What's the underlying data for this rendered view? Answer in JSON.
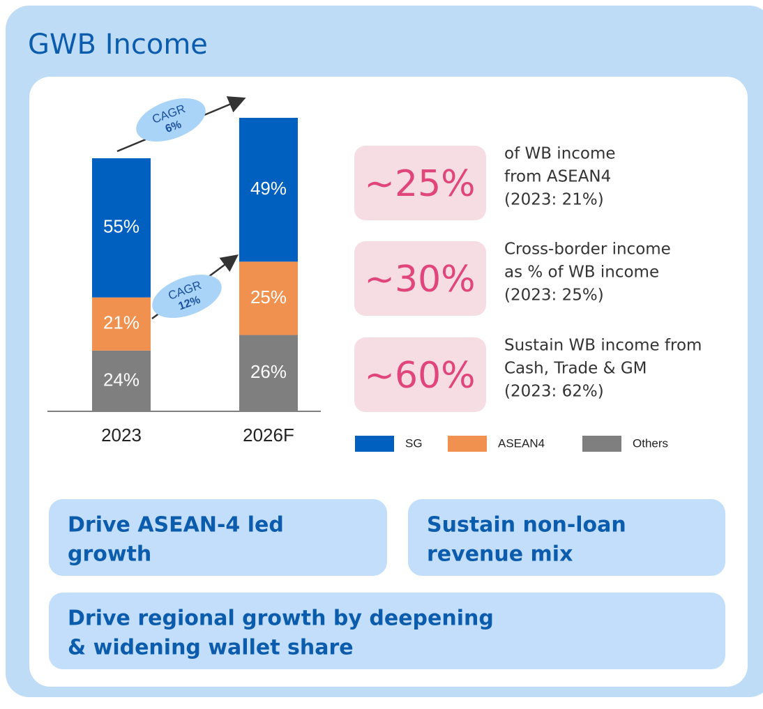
{
  "title": "GWB Income",
  "chart_data": {
    "type": "stacked_bar",
    "categories": [
      "2023",
      "2026F"
    ],
    "series": [
      {
        "name": "SG",
        "color": "#0060bf",
        "values": [
          55,
          49
        ],
        "value_labels": [
          "55%",
          "49%"
        ]
      },
      {
        "name": "ASEAN4",
        "color": "#f0914f",
        "values": [
          21,
          25
        ],
        "value_labels": [
          "21%",
          "25%"
        ]
      },
      {
        "name": "Others",
        "color": "#7f7f7f",
        "values": [
          24,
          26
        ],
        "value_labels": [
          "24%",
          "26%"
        ]
      }
    ],
    "annotations": [
      {
        "label": "CAGR",
        "value": "6%"
      },
      {
        "label": "CAGR",
        "value": "12%"
      }
    ]
  },
  "kpis": [
    {
      "value": "~25%",
      "lines": [
        "of WB income",
        "from ASEAN4",
        "(2023: 21%)"
      ]
    },
    {
      "value": "~30%",
      "lines": [
        "Cross-border income",
        "as % of WB income",
        "(2023: 25%)"
      ]
    },
    {
      "value": "~60%",
      "lines": [
        "Sustain WB income from",
        "Cash, Trade & GM",
        "(2023: 62%)"
      ]
    }
  ],
  "pills": [
    [
      "Drive ASEAN-4 led",
      "growth"
    ],
    [
      "Sustain non-loan",
      "revenue mix"
    ],
    [
      "Drive regional growth by deepening",
      "& widening wallet share"
    ]
  ]
}
